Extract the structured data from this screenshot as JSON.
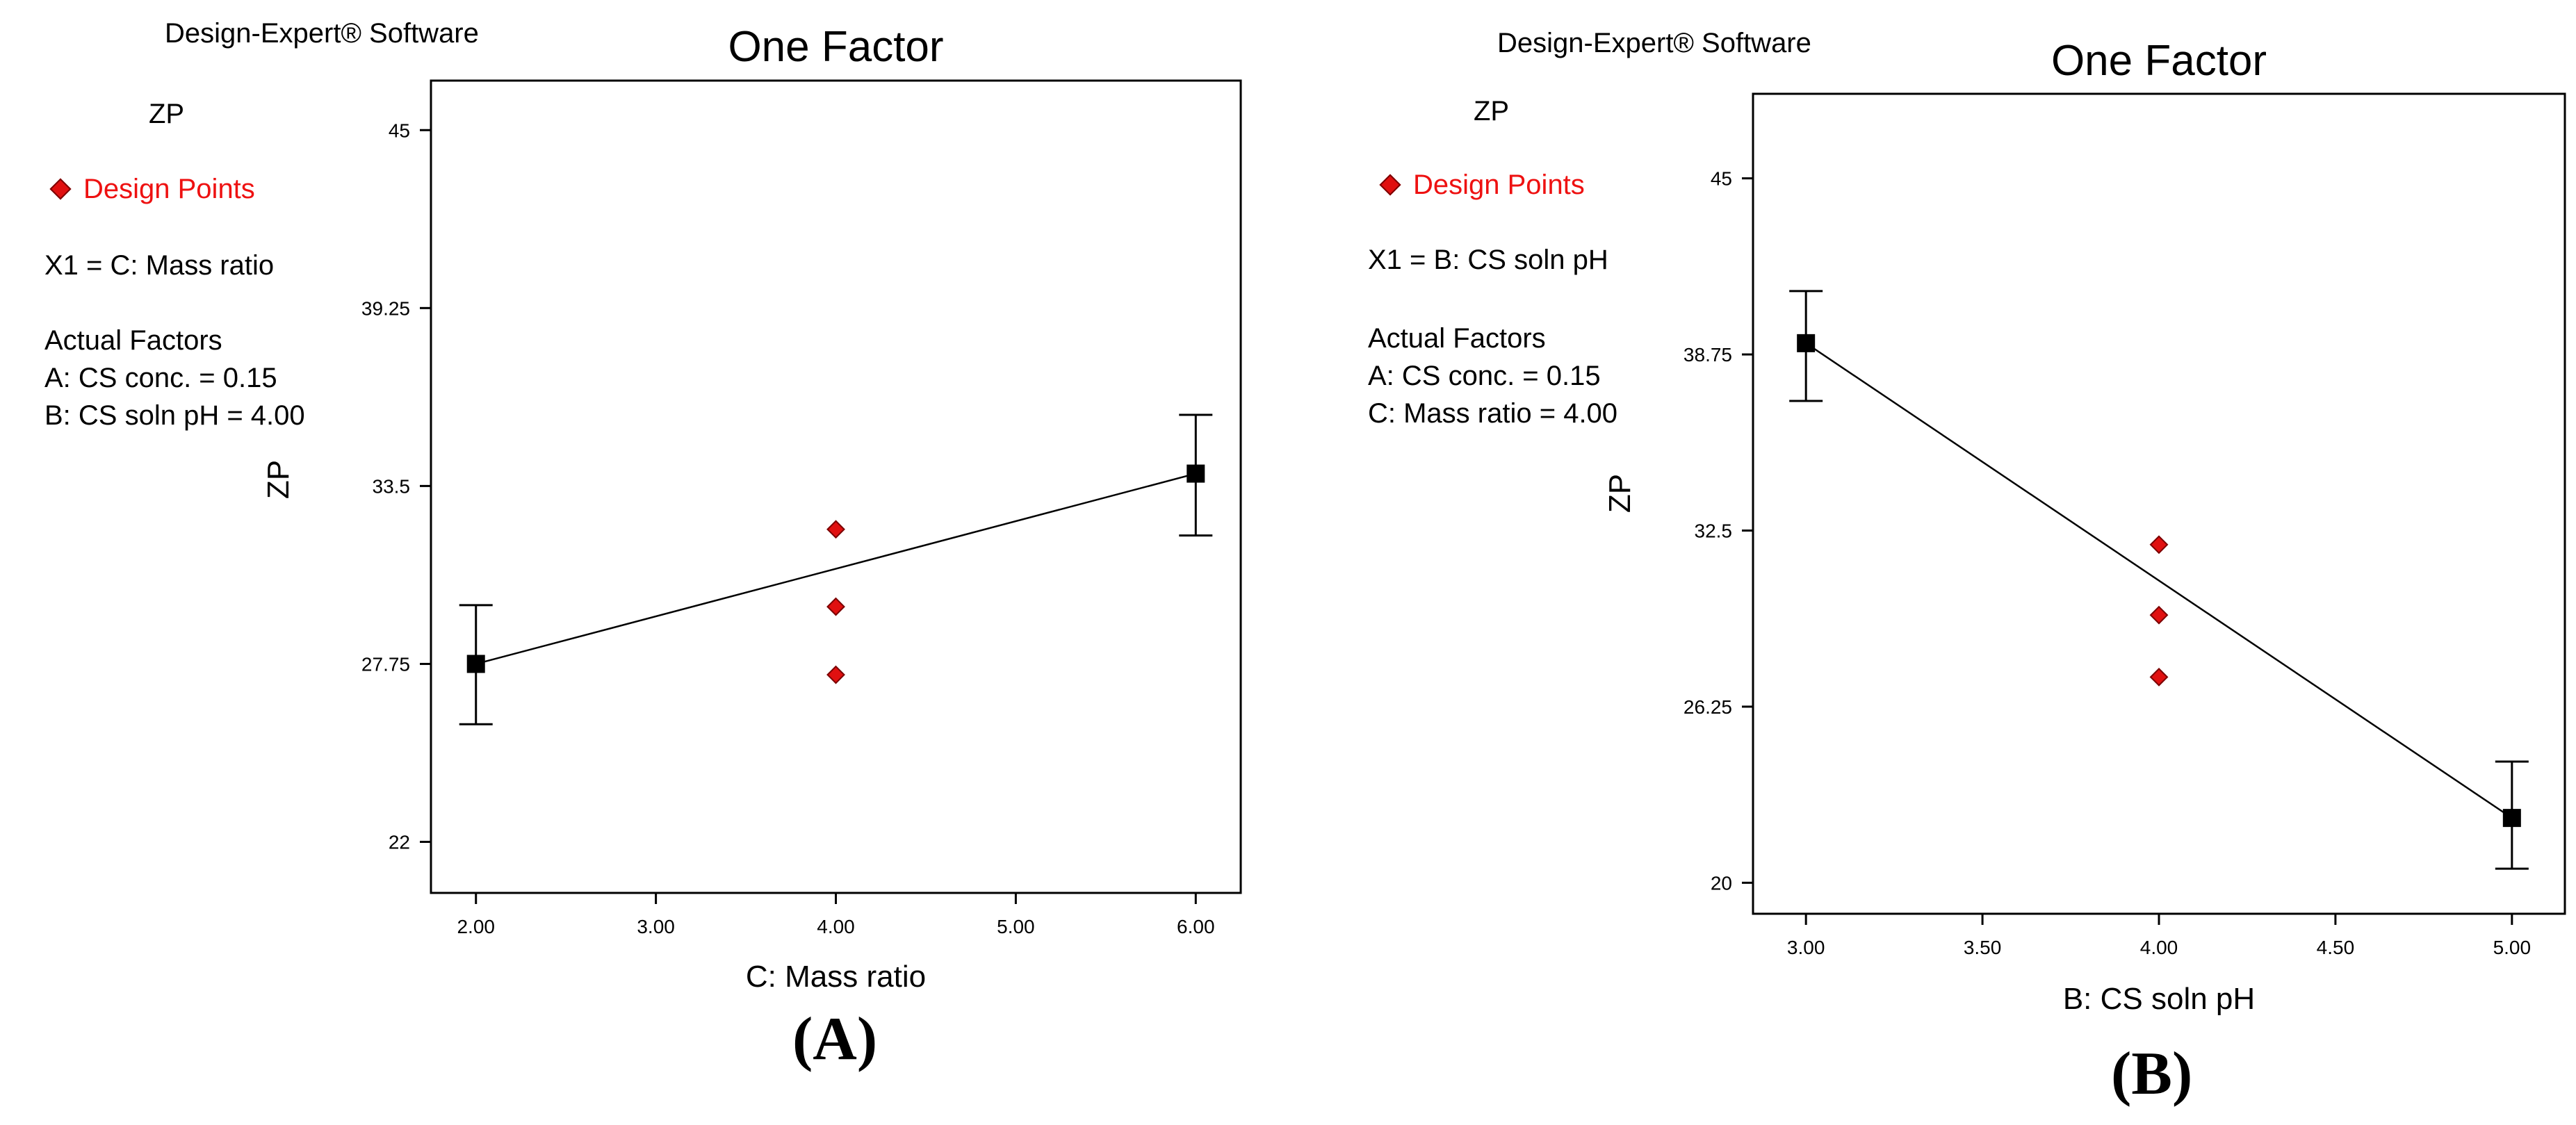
{
  "panels": [
    {
      "software_label": "Design-Expert® Software",
      "response_label": "ZP",
      "design_points_label": "Design Points",
      "factor_label": "X1 = C: Mass ratio",
      "actual_factors": {
        "heading": "Actual Factors",
        "lines": [
          "A: CS conc. = 0.15",
          "B: CS soln pH = 4.00"
        ]
      },
      "figure_label": "(A)"
    },
    {
      "software_label": "Design-Expert® Software",
      "response_label": "ZP",
      "design_points_label": "Design Points",
      "factor_label": "X1 = B: CS soln pH",
      "actual_factors": {
        "heading": "Actual Factors",
        "lines": [
          "A: CS conc. = 0.15",
          "C: Mass ratio = 4.00"
        ]
      },
      "figure_label": "(B)"
    }
  ],
  "colors": {
    "design_point": "#e01010",
    "design_point_edge": "#7a0000",
    "prediction": "#000000",
    "axis": "#000000"
  },
  "chart_data": [
    {
      "type": "line",
      "title": "One Factor",
      "xlabel": "C: Mass ratio",
      "ylabel": "ZP",
      "xlim": [
        1.75,
        6.25
      ],
      "ylim": [
        20.35,
        46.6
      ],
      "xticks": [
        2,
        3,
        4,
        5,
        6
      ],
      "xtick_labels": [
        "2.00",
        "3.00",
        "4.00",
        "5.00",
        "6.00"
      ],
      "yticks": [
        22,
        27.75,
        33.5,
        39.25,
        45
      ],
      "ytick_labels": [
        "22",
        "27.75",
        "33.5",
        "39.25",
        "45"
      ],
      "prediction": {
        "x": [
          2,
          6
        ],
        "y": [
          27.75,
          33.9
        ]
      },
      "error_bars": [
        {
          "x": 2,
          "low": 25.8,
          "high": 29.65
        },
        {
          "x": 6,
          "low": 31.9,
          "high": 35.8
        }
      ],
      "design_points": [
        {
          "x": 4,
          "y": 32.1
        },
        {
          "x": 4,
          "y": 29.6
        },
        {
          "x": 4,
          "y": 27.4
        }
      ]
    },
    {
      "type": "line",
      "title": "One Factor",
      "xlabel": "B: CS soln pH",
      "ylabel": "ZP",
      "xlim": [
        2.85,
        5.15
      ],
      "ylim": [
        18.9,
        48.0
      ],
      "xticks": [
        3,
        3.5,
        4,
        4.5,
        5
      ],
      "xtick_labels": [
        "3.00",
        "3.50",
        "4.00",
        "4.50",
        "5.00"
      ],
      "yticks": [
        20,
        26.25,
        32.5,
        38.75,
        45
      ],
      "ytick_labels": [
        "20",
        "26.25",
        "32.5",
        "38.75",
        "45"
      ],
      "prediction": {
        "x": [
          3,
          5
        ],
        "y": [
          39.15,
          22.3
        ]
      },
      "error_bars": [
        {
          "x": 3,
          "low": 37.1,
          "high": 41.0
        },
        {
          "x": 5,
          "low": 20.5,
          "high": 24.3
        }
      ],
      "design_points": [
        {
          "x": 4,
          "y": 32.0
        },
        {
          "x": 4,
          "y": 29.5
        },
        {
          "x": 4,
          "y": 27.3
        }
      ]
    }
  ]
}
